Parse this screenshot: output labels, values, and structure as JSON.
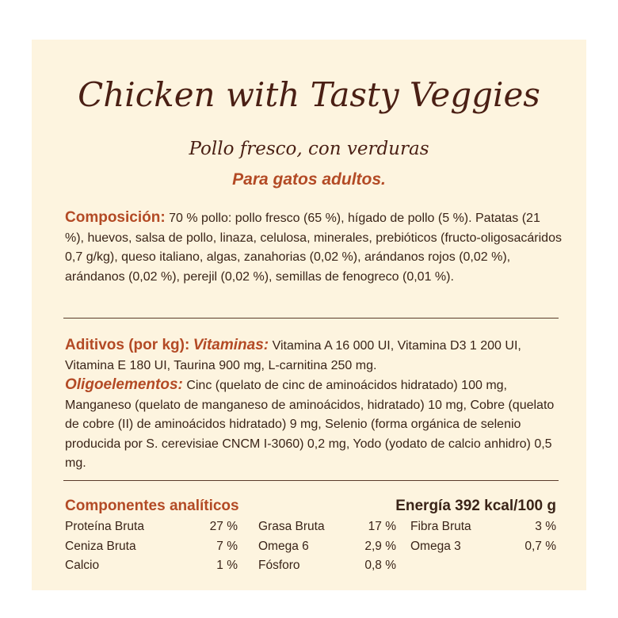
{
  "header": {
    "title": "Chicken with Tasty Veggies",
    "subtitle": "Pollo fresco, con verduras",
    "audience": "Para gatos adultos."
  },
  "composition": {
    "label": "Composición:",
    "text": "70 % pollo: pollo fresco (65 %), hígado de pollo (5 %). Patatas (21 %), huevos, salsa de pollo, linaza, celulosa, minerales, prebióticos (fructo-oligosacáridos 0,7 g/kg), queso italiano, algas, zanahorias (0,02 %), arándanos rojos (0,02 %), arándanos (0,02 %), perejil (0,02 %), semillas de fenogreco (0,01 %)."
  },
  "additives": {
    "label": "Aditivos (por kg):",
    "vitamins_label": "Vitaminas:",
    "vitamins_text": "Vitamina A 16 000 UI, Vitamina D3 1 200 UI, Vitamina E 180 UI, Taurina 900 mg, L-carnitina 250 mg.",
    "trace_label": "Oligoelementos:",
    "trace_text": "Cinc (quelato de cinc de aminoácidos hidratado) 100 mg, Manganeso (quelato de manganeso de aminoácidos, hidratado) 10 mg, Cobre (quelato de cobre (II) de aminoácidos hidratado) 9 mg, Selenio (forma orgánica de selenio producida por S. cerevisiae CNCM I-3060) 0,2 mg, Yodo (yodato de calcio anhidro) 0,5 mg."
  },
  "analysis": {
    "title": "Componentes analíticos",
    "energy": "Energía 392 kcal/100 g",
    "rows": [
      [
        [
          "Proteína Bruta",
          "27 %"
        ],
        [
          "Grasa Bruta",
          "17 %"
        ],
        [
          "Fibra Bruta",
          "3 %"
        ]
      ],
      [
        [
          "Ceniza Bruta",
          "7 %"
        ],
        [
          "Omega 6",
          "2,9 %"
        ],
        [
          "Omega 3",
          "0,7 %"
        ]
      ],
      [
        [
          "Calcio",
          "1 %"
        ],
        [
          "Fósforo",
          "0,8 %"
        ]
      ]
    ]
  }
}
